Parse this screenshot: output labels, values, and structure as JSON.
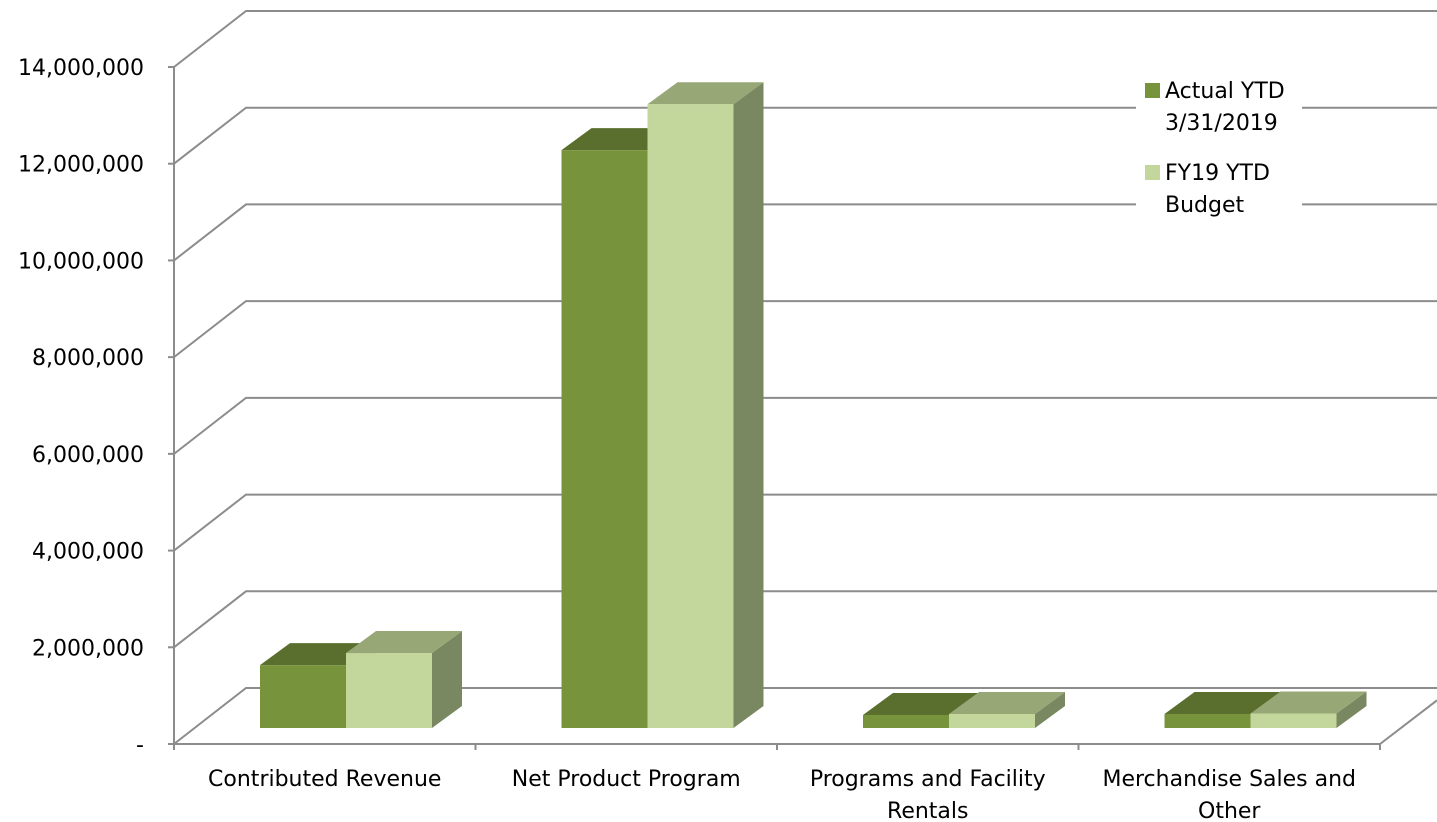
{
  "chart_data": {
    "type": "bar",
    "title": "",
    "xlabel": "",
    "ylabel": "",
    "categories": [
      [
        "Contributed Revenue"
      ],
      [
        "Net Product Program"
      ],
      [
        "Programs and Facility",
        "Rentals"
      ],
      [
        "Merchandise Sales and",
        "Other"
      ]
    ],
    "series": [
      {
        "name": [
          "Actual YTD",
          "3/31/2019"
        ],
        "values": [
          1300000,
          11950000,
          270000,
          290000
        ]
      },
      {
        "name": [
          "FY19 YTD",
          "Budget"
        ],
        "values": [
          1550000,
          12900000,
          290000,
          300000
        ]
      }
    ],
    "ylim": [
      0,
      14000000
    ],
    "ytick_values": [
      0,
      2000000,
      4000000,
      6000000,
      8000000,
      10000000,
      12000000,
      14000000
    ],
    "ytick_labels": [
      "-",
      "2,000,000",
      "4,000,000",
      "6,000,000",
      "8,000,000",
      "10,000,000",
      "12,000,000",
      "14,000,000"
    ],
    "grid": true,
    "legend_position": "top-right",
    "style": "3d-clustered-column"
  },
  "colors": {
    "series_front": [
      "#77933c",
      "#c3d69b"
    ],
    "series_top": [
      "#5a6f2d",
      "#97a876"
    ],
    "series_side": [
      "#5a6f2d",
      "#7a8862"
    ],
    "grid": "#8c8c8c"
  }
}
